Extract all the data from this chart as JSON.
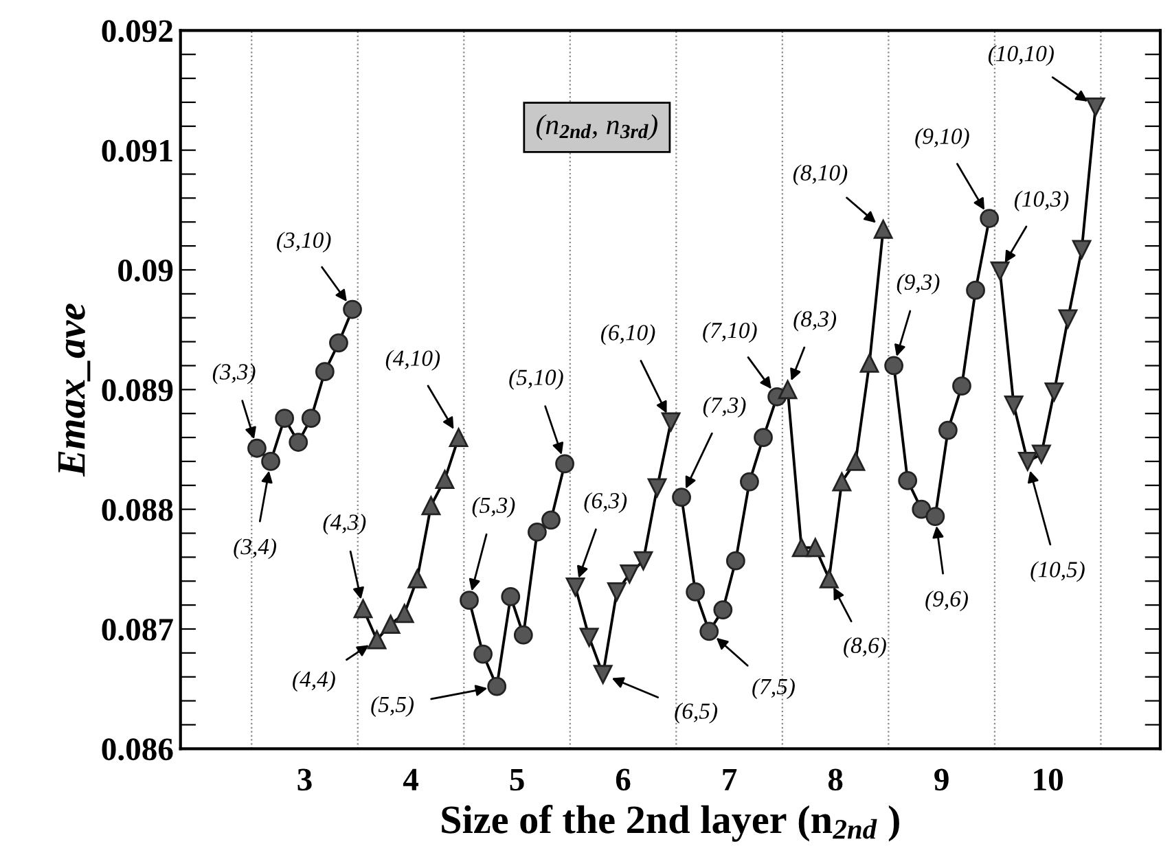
{
  "chart_data": {
    "type": "line",
    "xlabel": "Size of the 2nd layer (n$_{2nd}$ )",
    "ylabel": "Emax_ave",
    "xlim": [
      1.83,
      11.06
    ],
    "xticks": [
      3,
      4,
      5,
      6,
      7,
      8,
      9,
      10
    ],
    "ylim": [
      0.086,
      0.092
    ],
    "yticks": [
      0.086,
      {
        "value": 0.0862,
        "label": null
      },
      {
        "value": 0.0864,
        "label": null
      },
      {
        "value": 0.0866,
        "label": null
      },
      {
        "value": 0.0868,
        "label": null
      },
      0.087,
      {
        "value": 0.0872,
        "label": null
      },
      {
        "value": 0.0874,
        "label": null
      },
      {
        "value": 0.0876,
        "label": null
      },
      {
        "value": 0.0878,
        "label": null
      },
      0.088,
      {
        "value": 0.0882,
        "label": null
      },
      {
        "value": 0.0884,
        "label": null
      },
      {
        "value": 0.0886,
        "label": null
      },
      {
        "value": 0.0888,
        "label": null
      },
      0.089,
      {
        "value": 0.0892,
        "label": null
      },
      {
        "value": 0.0894,
        "label": null
      },
      {
        "value": 0.0896,
        "label": null
      },
      {
        "value": 0.0898,
        "label": null
      },
      0.09,
      {
        "value": 0.0902,
        "label": null
      },
      {
        "value": 0.0904,
        "label": null
      },
      {
        "value": 0.0906,
        "label": null
      },
      {
        "value": 0.0908,
        "label": null
      },
      0.091,
      {
        "value": 0.0912,
        "label": null
      },
      {
        "value": 0.0914,
        "label": null
      },
      {
        "value": 0.0916,
        "label": null
      },
      {
        "value": 0.0918,
        "label": null
      },
      0.092
    ],
    "grid": false,
    "legend": false,
    "line_style": "solid",
    "series": [
      {
        "color": "#555555",
        "marker": "circle",
        "x": [
          2.55,
          2.68,
          2.81,
          2.94,
          3.06,
          3.19,
          3.32,
          3.45
        ],
        "values": [
          0.08851,
          0.0884,
          0.08876,
          0.08856,
          0.08876,
          0.08915,
          0.08939,
          0.08967
        ]
      },
      {
        "color": "#555555",
        "marker": "triangle",
        "x": [
          3.55,
          3.68,
          3.81,
          3.94,
          4.06,
          4.19,
          4.32,
          4.45
        ],
        "values": [
          0.08717,
          0.08691,
          0.08704,
          0.08713,
          0.08742,
          0.08803,
          0.08825,
          0.0886
        ]
      },
      {
        "color": "#555555",
        "marker": "circle",
        "x": [
          4.55,
          4.68,
          4.81,
          4.94,
          5.06,
          5.19,
          5.32,
          5.45
        ],
        "values": [
          0.08724,
          0.08679,
          0.08652,
          0.08727,
          0.08695,
          0.08781,
          0.08791,
          0.08838
        ]
      },
      {
        "color": "#555555",
        "marker": "triangle_down",
        "x": [
          5.55,
          5.68,
          5.81,
          5.94,
          6.06,
          6.19,
          6.32,
          6.45
        ],
        "values": [
          0.08735,
          0.08693,
          0.08662,
          0.08731,
          0.08746,
          0.08757,
          0.08818,
          0.08873
        ]
      },
      {
        "color": "#555555",
        "marker": "circle",
        "x": [
          6.55,
          6.68,
          6.81,
          6.94,
          7.06,
          7.19,
          7.32,
          7.45
        ],
        "values": [
          0.0881,
          0.08731,
          0.08698,
          0.08716,
          0.08757,
          0.08823,
          0.0886,
          0.08894
        ]
      },
      {
        "color": "#555555",
        "marker": "triangle",
        "x": [
          7.55,
          7.68,
          7.81,
          7.94,
          8.06,
          8.19,
          8.32,
          8.45
        ],
        "values": [
          0.089,
          0.08768,
          0.08768,
          0.08742,
          0.08823,
          0.0884,
          0.08922,
          0.09034
        ]
      },
      {
        "color": "#555555",
        "marker": "circle",
        "x": [
          8.55,
          8.68,
          8.81,
          8.94,
          9.06,
          9.19,
          9.32,
          9.45
        ],
        "values": [
          0.0892,
          0.08824,
          0.088,
          0.08794,
          0.08866,
          0.08903,
          0.08983,
          0.09043
        ]
      },
      {
        "color": "#555555",
        "marker": "triangle_down",
        "x": [
          9.55,
          9.68,
          9.81,
          9.94,
          10.06,
          10.19,
          10.32,
          10.45
        ],
        "values": [
          0.08999,
          0.08887,
          0.0884,
          0.08846,
          0.08898,
          0.08959,
          0.09017,
          0.09136
        ]
      }
    ],
    "ref_lines": [
      {
        "axis": "x",
        "value": 2.5,
        "line_style": "dotted",
        "color": "#888888"
      },
      {
        "axis": "x",
        "value": 3.5,
        "line_style": "dotted",
        "color": "#888888"
      },
      {
        "axis": "x",
        "value": 4.5,
        "line_style": "dotted",
        "color": "#888888"
      },
      {
        "axis": "x",
        "value": 5.5,
        "line_style": "dotted",
        "color": "#888888"
      },
      {
        "axis": "x",
        "value": 6.5,
        "line_style": "dotted",
        "color": "#888888"
      },
      {
        "axis": "x",
        "value": 7.5,
        "line_style": "dotted",
        "color": "#888888"
      },
      {
        "axis": "x",
        "value": 8.5,
        "line_style": "dotted",
        "color": "#888888"
      },
      {
        "axis": "x",
        "value": 9.5,
        "line_style": "dotted",
        "color": "#888888"
      },
      {
        "axis": "x",
        "value": 10.5,
        "line_style": "dotted",
        "color": "#888888"
      }
    ],
    "annotations": [
      "(n$_{2nd}$, n$_{3rd}$)",
      {
        "text": "(3,3)",
        "x": 2.55,
        "y": 0.08851
      },
      {
        "text": "(3,4)",
        "x": 2.68,
        "y": 0.0884
      },
      {
        "text": "(3,10)",
        "x": 3.45,
        "y": 0.08967
      },
      {
        "text": "(4,3)",
        "x": 3.55,
        "y": 0.08717
      },
      {
        "text": "(4,4)",
        "x": 3.68,
        "y": 0.08691
      },
      {
        "text": "(4,10)",
        "x": 4.45,
        "y": 0.0886
      },
      {
        "text": "(5,3)",
        "x": 4.55,
        "y": 0.08724
      },
      {
        "text": "(5,5)",
        "x": 4.81,
        "y": 0.08652
      },
      {
        "text": "(5,10)",
        "x": 5.45,
        "y": 0.08838
      },
      {
        "text": "(6,3)",
        "x": 5.55,
        "y": 0.08735
      },
      {
        "text": "(6,5)",
        "x": 5.81,
        "y": 0.08662
      },
      {
        "text": "(6,10)",
        "x": 6.45,
        "y": 0.08873
      },
      {
        "text": "(7,3)",
        "x": 6.55,
        "y": 0.0881
      },
      {
        "text": "(7,5)",
        "x": 6.81,
        "y": 0.08698
      },
      {
        "text": "(7,10)",
        "x": 7.45,
        "y": 0.08894
      },
      {
        "text": "(8,3)",
        "x": 7.55,
        "y": 0.089
      },
      {
        "text": "(8,6)",
        "x": 7.94,
        "y": 0.08742
      },
      {
        "text": "(8,10)",
        "x": 8.45,
        "y": 0.09034
      },
      {
        "text": "(9,3)",
        "x": 8.55,
        "y": 0.0892
      },
      {
        "text": "(9,6)",
        "x": 8.94,
        "y": 0.08794
      },
      {
        "text": "(9,10)",
        "x": 9.45,
        "y": 0.09043
      },
      {
        "text": "(10,3)",
        "x": 9.55,
        "y": 0.08999
      },
      {
        "text": "(10,5)",
        "x": 9.81,
        "y": 0.0884
      },
      {
        "text": "(10,10)",
        "x": 10.45,
        "y": 0.09136
      }
    ]
  }
}
